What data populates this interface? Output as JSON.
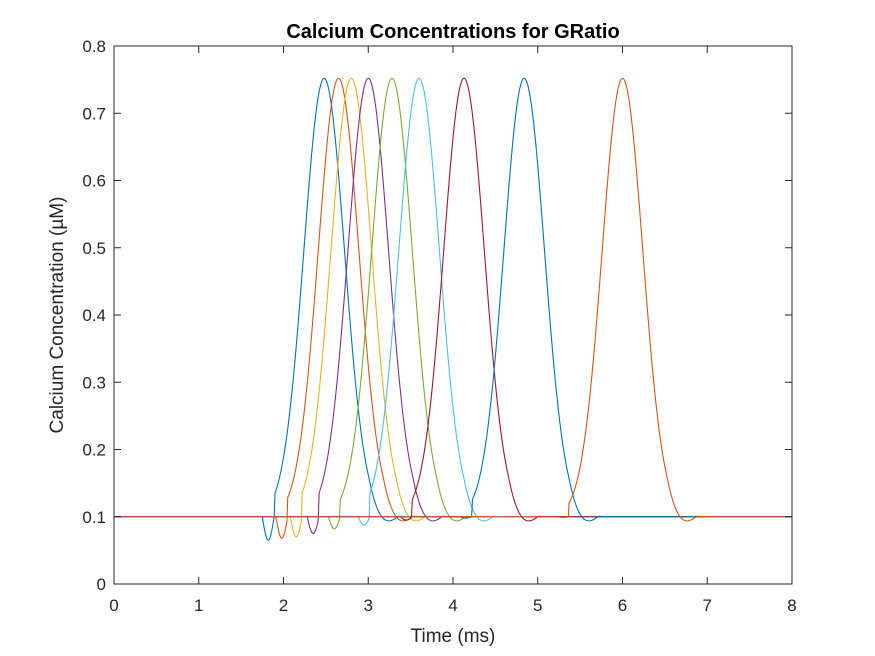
{
  "chart_data": {
    "type": "line",
    "title": "Calcium Concentrations for GRatio",
    "xlabel": "Time (ms)",
    "ylabel": "Calcium Concentration (µM)",
    "xlim": [
      0,
      8
    ],
    "ylim": [
      0,
      0.8
    ],
    "xticks": [
      0,
      1,
      2,
      3,
      4,
      5,
      6,
      7,
      8
    ],
    "yticks": [
      0,
      0.1,
      0.2,
      0.3,
      0.4,
      0.5,
      0.6,
      0.7,
      0.8
    ],
    "xtick_labels": [
      "0",
      "1",
      "2",
      "3",
      "4",
      "5",
      "6",
      "7",
      "8"
    ],
    "ytick_labels": [
      "0",
      "0.1",
      "0.2",
      "0.3",
      "0.4",
      "0.5",
      "0.6",
      "0.7",
      "0.8"
    ],
    "grid": false,
    "baseline": 0.1,
    "series": [
      {
        "color": "#0072BD",
        "dip_time": 1.82,
        "dip_value": 0.065,
        "peak_time": 2.48,
        "peak_value": 0.752
      },
      {
        "color": "#D95319",
        "dip_time": 1.98,
        "dip_value": 0.068,
        "peak_time": 2.65,
        "peak_value": 0.752
      },
      {
        "color": "#EDB120",
        "dip_time": 2.15,
        "dip_value": 0.07,
        "peak_time": 2.8,
        "peak_value": 0.752
      },
      {
        "color": "#7E2F8E",
        "dip_time": 2.35,
        "dip_value": 0.075,
        "peak_time": 3.0,
        "peak_value": 0.752
      },
      {
        "color": "#77AC30",
        "dip_time": 2.6,
        "dip_value": 0.082,
        "peak_time": 3.28,
        "peak_value": 0.752
      },
      {
        "color": "#4DBEEE",
        "dip_time": 2.95,
        "dip_value": 0.088,
        "peak_time": 3.6,
        "peak_value": 0.752
      },
      {
        "color": "#A2142F",
        "dip_time": 3.45,
        "dip_value": 0.095,
        "peak_time": 4.13,
        "peak_value": 0.752
      },
      {
        "color": "#0072BD",
        "dip_time": 4.15,
        "dip_value": 0.098,
        "peak_time": 4.84,
        "peak_value": 0.752
      },
      {
        "color": "#D95319",
        "dip_time": 5.3,
        "dip_value": 0.099,
        "peak_time": 6.0,
        "peak_value": 0.752
      }
    ]
  }
}
